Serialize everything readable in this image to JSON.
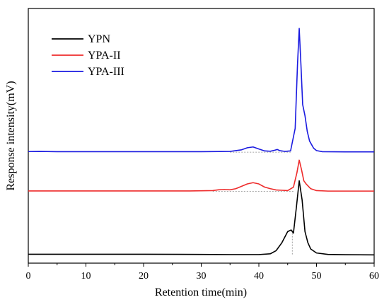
{
  "chart_data": {
    "type": "line",
    "xlabel": "Retention time(min)",
    "ylabel": "Response intensity(mV)",
    "xlim": [
      0,
      60
    ],
    "x_ticks": [
      "0",
      "10",
      "20",
      "30",
      "40",
      "50",
      "60"
    ],
    "y_ticks_labeled": false,
    "grid": false,
    "legend_position": "top-left",
    "series": [
      {
        "name": "YPN",
        "color": "#000000",
        "x": [
          0,
          10,
          20,
          30,
          35,
          40,
          42,
          43,
          44,
          45,
          45.6,
          46,
          46.5,
          47,
          47.5,
          48,
          48.5,
          49,
          50,
          52,
          55,
          60
        ],
        "y": [
          0.7,
          0.7,
          0.7,
          0.6,
          0.5,
          0.5,
          1.0,
          3.0,
          8.0,
          15.0,
          16.0,
          14.0,
          30.0,
          47.0,
          35.0,
          15.0,
          8.0,
          4.0,
          1.5,
          0.6,
          0.4,
          0.3
        ],
        "baseline_segments": [
          {
            "x": [
              45.8,
              45.8
            ],
            "y": [
              0.6,
              16.0
            ]
          }
        ]
      },
      {
        "name": "YPA-II",
        "color": "#ee2b2b",
        "x": [
          0,
          10,
          20,
          28,
          32,
          33,
          34,
          35,
          36,
          37,
          38,
          39,
          40,
          41,
          42,
          43,
          44,
          45,
          46,
          46.6,
          47,
          47.4,
          47.8,
          48.2,
          49,
          50,
          52,
          55,
          60
        ],
        "y": [
          40.6,
          40.6,
          40.6,
          40.6,
          40.8,
          41.3,
          41.5,
          41.3,
          42.0,
          43.5,
          45.0,
          45.8,
          45.0,
          43.0,
          42.0,
          41.2,
          41.0,
          40.8,
          43.0,
          52.0,
          60.0,
          54.0,
          47.0,
          45.0,
          42.0,
          40.8,
          40.5,
          40.5,
          40.5
        ],
        "baseline_segments": [
          {
            "x": [
              32,
              46
            ],
            "y": [
              40.4,
              40.4
            ]
          }
        ]
      },
      {
        "name": "YPA-III",
        "color": "#1a1ae0",
        "x": [
          0,
          2,
          5,
          10,
          20,
          30,
          35,
          37,
          38,
          39,
          40,
          41,
          42,
          42.8,
          43.2,
          43.6,
          44.5,
          45.5,
          46.3,
          46.7,
          47,
          47.3,
          47.6,
          48,
          48.4,
          48.8,
          49.5,
          50,
          51,
          55,
          60
        ],
        "y": [
          65.4,
          65.5,
          65.3,
          65.3,
          65.3,
          65.3,
          65.5,
          66.5,
          67.8,
          68.3,
          67.0,
          65.8,
          65.6,
          66.3,
          66.7,
          66.0,
          65.5,
          65.8,
          80.0,
          120.0,
          143.0,
          120.0,
          95.0,
          88.0,
          78.0,
          72.0,
          67.5,
          66.0,
          65.3,
          65.2,
          65.2
        ],
        "baseline_segments": [
          {
            "x": [
              35,
              45.5
            ],
            "y": [
              65.0,
              65.0
            ]
          }
        ]
      }
    ]
  }
}
